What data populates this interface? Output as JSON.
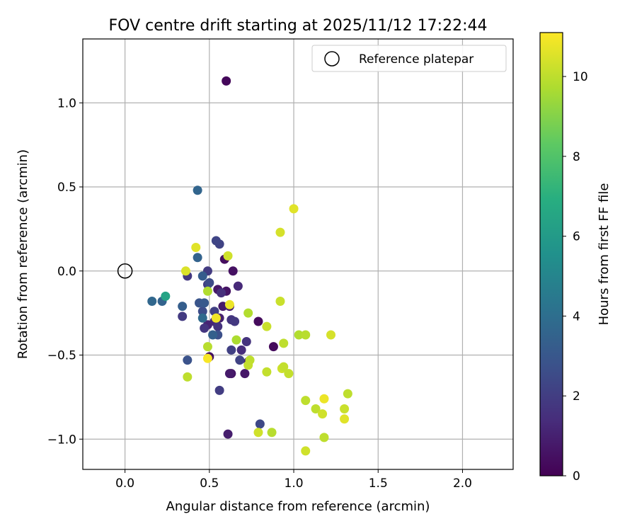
{
  "chart_data": {
    "type": "scatter",
    "title": "FOV centre drift starting at 2025/11/12 17:22:44",
    "xlabel": "Angular distance from reference (arcmin)",
    "ylabel": "Rotation from reference (arcmin)",
    "xlim": [
      -0.25,
      2.3
    ],
    "ylim": [
      -1.18,
      1.38
    ],
    "xticks": [
      0.0,
      0.5,
      1.0,
      1.5,
      2.0
    ],
    "xtick_labels": [
      "0.0",
      "0.5",
      "1.0",
      "1.5",
      "2.0"
    ],
    "yticks": [
      -1.0,
      -0.5,
      0.0,
      0.5,
      1.0
    ],
    "ytick_labels": [
      "−1.0",
      "−0.5",
      "0.0",
      "0.5",
      "1.0"
    ],
    "grid": true,
    "legend": {
      "position": "top-right",
      "entries": [
        "Reference platepar"
      ]
    },
    "reference_point": {
      "x": 0.0,
      "y": 0.0,
      "label": "Reference platepar"
    },
    "colorbar": {
      "label": "Hours from first FF file",
      "range": [
        0,
        11.1
      ],
      "ticks": [
        0,
        2,
        4,
        6,
        8,
        10
      ],
      "tick_labels": [
        "0",
        "2",
        "4",
        "6",
        "8",
        "10"
      ],
      "colormap": "viridis"
    },
    "points": [
      {
        "x": 0.6,
        "y": 1.13,
        "h": 0.2
      },
      {
        "x": 0.59,
        "y": 0.07,
        "h": 0.4
      },
      {
        "x": 0.64,
        "y": 0.0,
        "h": 0.5
      },
      {
        "x": 0.6,
        "y": -0.12,
        "h": 0.6
      },
      {
        "x": 0.55,
        "y": -0.11,
        "h": 0.7
      },
      {
        "x": 0.58,
        "y": -0.21,
        "h": 0.8
      },
      {
        "x": 0.62,
        "y": -0.21,
        "h": 0.9
      },
      {
        "x": 0.79,
        "y": -0.3,
        "h": 0.3
      },
      {
        "x": 0.88,
        "y": -0.45,
        "h": 0.3
      },
      {
        "x": 0.71,
        "y": -0.61,
        "h": 0.7
      },
      {
        "x": 0.63,
        "y": -0.61,
        "h": 0.6
      },
      {
        "x": 0.62,
        "y": -0.61,
        "h": 0.8
      },
      {
        "x": 0.73,
        "y": -0.54,
        "h": 0.9
      },
      {
        "x": 0.5,
        "y": -0.51,
        "h": 0.5
      },
      {
        "x": 0.61,
        "y": -0.97,
        "h": 0.9
      },
      {
        "x": 0.49,
        "y": -0.32,
        "h": 1.1
      },
      {
        "x": 0.53,
        "y": -0.3,
        "h": 1.2
      },
      {
        "x": 0.56,
        "y": -0.28,
        "h": 1.0
      },
      {
        "x": 0.67,
        "y": -0.09,
        "h": 1.3
      },
      {
        "x": 0.69,
        "y": -0.47,
        "h": 1.4
      },
      {
        "x": 0.72,
        "y": -0.42,
        "h": 1.6
      },
      {
        "x": 0.63,
        "y": -0.29,
        "h": 1.7
      },
      {
        "x": 0.65,
        "y": -0.3,
        "h": 1.8
      },
      {
        "x": 0.57,
        "y": -0.13,
        "h": 1.5
      },
      {
        "x": 0.55,
        "y": -0.33,
        "h": 1.6
      },
      {
        "x": 0.47,
        "y": -0.34,
        "h": 1.7
      },
      {
        "x": 0.49,
        "y": 0.0,
        "h": 1.9
      },
      {
        "x": 0.37,
        "y": -0.03,
        "h": 1.8
      },
      {
        "x": 0.34,
        "y": -0.27,
        "h": 1.9
      },
      {
        "x": 0.49,
        "y": -0.08,
        "h": 2.0
      },
      {
        "x": 0.53,
        "y": -0.24,
        "h": 2.1
      },
      {
        "x": 0.56,
        "y": 0.16,
        "h": 2.2
      },
      {
        "x": 0.54,
        "y": 0.18,
        "h": 2.3
      },
      {
        "x": 0.56,
        "y": -0.71,
        "h": 2.0
      },
      {
        "x": 0.63,
        "y": -0.47,
        "h": 2.1
      },
      {
        "x": 0.68,
        "y": -0.53,
        "h": 2.2
      },
      {
        "x": 0.8,
        "y": -0.91,
        "h": 2.4
      },
      {
        "x": 0.5,
        "y": -0.07,
        "h": 2.5
      },
      {
        "x": 0.46,
        "y": -0.24,
        "h": 2.6
      },
      {
        "x": 0.55,
        "y": -0.38,
        "h": 2.7
      },
      {
        "x": 0.37,
        "y": -0.53,
        "h": 2.8
      },
      {
        "x": 0.44,
        "y": -0.19,
        "h": 2.9
      },
      {
        "x": 0.47,
        "y": -0.19,
        "h": 3.1
      },
      {
        "x": 0.46,
        "y": -0.03,
        "h": 3.2
      },
      {
        "x": 0.52,
        "y": -0.38,
        "h": 3.4
      },
      {
        "x": 0.34,
        "y": -0.21,
        "h": 3.3
      },
      {
        "x": 0.22,
        "y": -0.18,
        "h": 3.5
      },
      {
        "x": 0.16,
        "y": -0.18,
        "h": 3.7
      },
      {
        "x": 0.43,
        "y": 0.08,
        "h": 3.5
      },
      {
        "x": 0.43,
        "y": 0.48,
        "h": 3.6
      },
      {
        "x": 0.46,
        "y": -0.28,
        "h": 3.8
      },
      {
        "x": 0.24,
        "y": -0.15,
        "h": 6.4
      },
      {
        "x": 0.42,
        "y": 0.14,
        "h": 10.6
      },
      {
        "x": 0.36,
        "y": 0.0,
        "h": 10.5
      },
      {
        "x": 0.49,
        "y": -0.12,
        "h": 9.8
      },
      {
        "x": 0.61,
        "y": 0.09,
        "h": 10.3
      },
      {
        "x": 0.62,
        "y": -0.2,
        "h": 10.8
      },
      {
        "x": 0.54,
        "y": -0.28,
        "h": 10.9
      },
      {
        "x": 0.49,
        "y": -0.52,
        "h": 11.0
      },
      {
        "x": 0.49,
        "y": -0.45,
        "h": 9.9
      },
      {
        "x": 0.37,
        "y": -0.63,
        "h": 10.0
      },
      {
        "x": 0.66,
        "y": -0.41,
        "h": 9.7
      },
      {
        "x": 0.73,
        "y": -0.25,
        "h": 9.8
      },
      {
        "x": 0.84,
        "y": -0.33,
        "h": 10.2
      },
      {
        "x": 0.74,
        "y": -0.53,
        "h": 10.0
      },
      {
        "x": 0.73,
        "y": -0.56,
        "h": 10.1
      },
      {
        "x": 0.84,
        "y": -0.6,
        "h": 10.1
      },
      {
        "x": 0.79,
        "y": -0.96,
        "h": 10.3
      },
      {
        "x": 0.87,
        "y": -0.96,
        "h": 9.9
      },
      {
        "x": 1.0,
        "y": 0.37,
        "h": 10.6
      },
      {
        "x": 0.92,
        "y": 0.23,
        "h": 10.4
      },
      {
        "x": 0.92,
        "y": -0.18,
        "h": 10.2
      },
      {
        "x": 0.94,
        "y": -0.43,
        "h": 10.0
      },
      {
        "x": 0.93,
        "y": -0.58,
        "h": 10.3
      },
      {
        "x": 0.94,
        "y": -0.57,
        "h": 10.1
      },
      {
        "x": 0.97,
        "y": -0.61,
        "h": 10.1
      },
      {
        "x": 1.03,
        "y": -0.38,
        "h": 9.8
      },
      {
        "x": 1.07,
        "y": -0.38,
        "h": 9.9
      },
      {
        "x": 1.22,
        "y": -0.38,
        "h": 10.4
      },
      {
        "x": 1.07,
        "y": -0.77,
        "h": 10.0
      },
      {
        "x": 1.13,
        "y": -0.82,
        "h": 10.0
      },
      {
        "x": 1.17,
        "y": -0.85,
        "h": 10.3
      },
      {
        "x": 1.18,
        "y": -0.76,
        "h": 10.8
      },
      {
        "x": 1.18,
        "y": -0.99,
        "h": 10.0
      },
      {
        "x": 1.07,
        "y": -1.07,
        "h": 10.3
      },
      {
        "x": 1.3,
        "y": -0.82,
        "h": 10.2
      },
      {
        "x": 1.3,
        "y": -0.88,
        "h": 10.6
      },
      {
        "x": 1.32,
        "y": -0.73,
        "h": 10.0
      }
    ]
  }
}
